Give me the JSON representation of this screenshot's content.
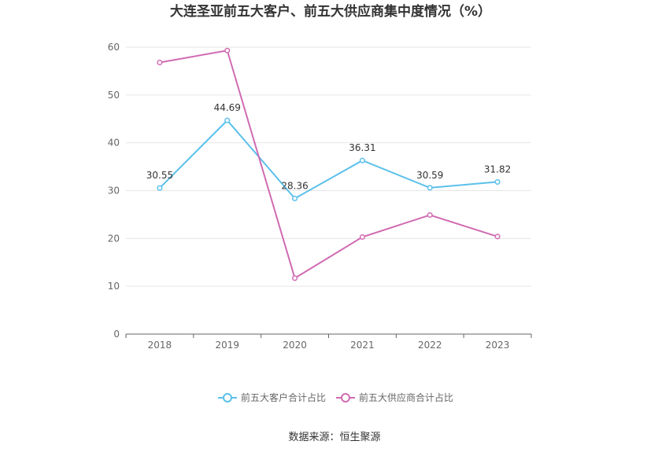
{
  "chart_data": {
    "type": "line",
    "title": "大连圣亚前五大客户、前五大供应商集中度情况（%）",
    "categories": [
      "2018",
      "2019",
      "2020",
      "2021",
      "2022",
      "2023"
    ],
    "ylim": [
      0,
      60
    ],
    "yticks": [
      0,
      10,
      20,
      30,
      40,
      50,
      60
    ],
    "grid": true,
    "legend_position": "bottom",
    "series": [
      {
        "name": "前五大客户合计占比",
        "color": "#5bc0eb",
        "values": [
          30.55,
          44.69,
          28.36,
          36.31,
          30.59,
          31.82
        ],
        "labels": [
          "30.55",
          "44.69",
          "28.36",
          "36.31",
          "30.59",
          "31.82"
        ]
      },
      {
        "name": "前五大供应商合计占比",
        "color": "#d06bb2",
        "values": [
          56.8,
          59.3,
          11.7,
          20.3,
          24.9,
          20.4
        ]
      }
    ]
  },
  "source": "数据来源：恒生聚源"
}
